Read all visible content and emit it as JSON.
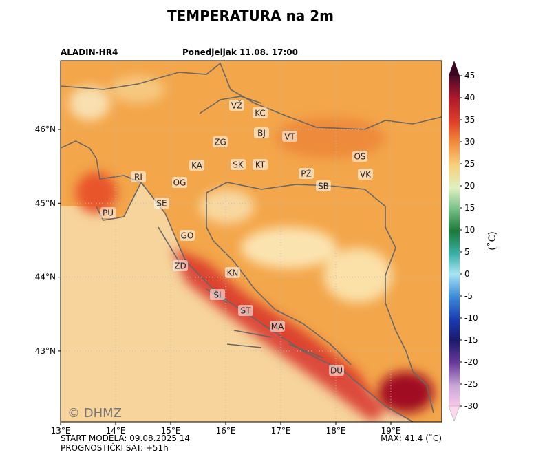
{
  "title": "TEMPERATURA na 2m",
  "model": "ALADIN-HR4",
  "valid_time": "Ponedjeljak 11.08. 17:00",
  "start": "START MODELA: 09.08.2025 14",
  "forecast_hour": "PROGNOSTIČKI SAT: +51h",
  "max": "MAX: 41.4 (˚C)",
  "copyright": "© DHMZ",
  "x_labels": [
    "13°E",
    "14°E",
    "15°E",
    "16°E",
    "17°E",
    "18°E",
    "19°E"
  ],
  "y_labels": [
    "46°N",
    "45°N",
    "44°N",
    "43°N"
  ],
  "colorbar": {
    "label": "(˚C)",
    "range": [
      -30,
      45
    ],
    "ticks": [
      45,
      40,
      35,
      30,
      25,
      20,
      15,
      10,
      5,
      0,
      -5,
      -10,
      -15,
      -20,
      -25,
      -30
    ]
  },
  "cities": [
    "VŽ",
    "KC",
    "BJ",
    "VT",
    "ZG",
    "OS",
    "KA",
    "SK",
    "KT",
    "PŽ",
    "VK",
    "RI",
    "OG",
    "SB",
    "SE",
    "PU",
    "GO",
    "ZD",
    "KN",
    "ŠI",
    "ST",
    "MA",
    "DU"
  ]
}
